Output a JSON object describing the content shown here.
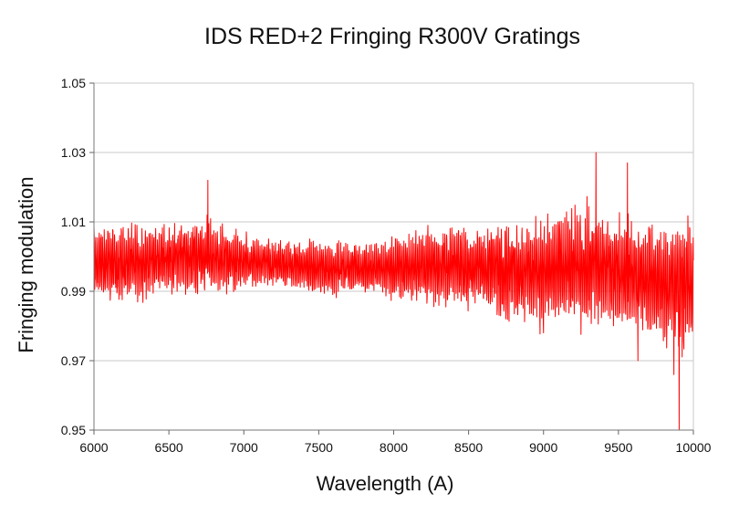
{
  "chart_data": {
    "type": "line",
    "title": "IDS RED+2 Fringing R300V Gratings",
    "xlabel": "Wavelength (A)",
    "ylabel": "Fringing modulation",
    "xlim": [
      6000,
      10000
    ],
    "ylim": [
      0.95,
      1.05
    ],
    "x_ticks": [
      "6000",
      "6500",
      "7000",
      "7500",
      "8000",
      "8500",
      "9000",
      "9500",
      "10000"
    ],
    "y_ticks": [
      "0.95",
      "0.97",
      "0.99",
      "1.01",
      "1.03",
      "1.05"
    ],
    "grid": "horizontal",
    "legend": "none",
    "series": [
      {
        "color": "#ff0000",
        "x": [
          6000,
          6250,
          6500,
          6750,
          7000,
          7250,
          7500,
          7750,
          8000,
          8250,
          8500,
          8750,
          9000,
          9250,
          9500,
          9750,
          10000
        ],
        "upper": [
          1.013,
          1.012,
          1.012,
          1.014,
          1.008,
          1.007,
          1.006,
          1.006,
          1.008,
          1.012,
          1.012,
          1.014,
          1.015,
          1.018,
          1.017,
          1.014,
          1.015
        ],
        "lower": [
          0.983,
          0.984,
          0.987,
          0.986,
          0.988,
          0.989,
          0.987,
          0.988,
          0.985,
          0.983,
          0.982,
          0.979,
          0.976,
          0.976,
          0.975,
          0.971,
          0.969
        ]
      }
    ],
    "spikes": [
      {
        "x": 6760,
        "y": 1.022
      },
      {
        "x": 9350,
        "y": 1.03
      },
      {
        "x": 9560,
        "y": 1.027
      },
      {
        "x": 9630,
        "y": 0.97
      },
      {
        "x": 9905,
        "y": 0.95
      },
      {
        "x": 9870,
        "y": 0.966
      }
    ]
  }
}
